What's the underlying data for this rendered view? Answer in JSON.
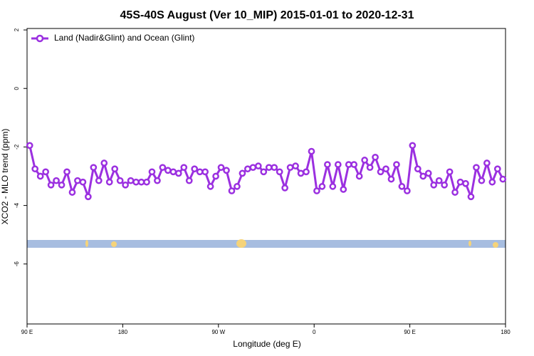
{
  "chart_data": {
    "type": "line",
    "title": "45S-40S August (Ver 10_MIP)   2015-01-01 to 2020-12-31",
    "xlabel": "Longitude (deg E)",
    "ylabel": "XCO2 - MLO trend (ppm)",
    "xlim": [
      90,
      540
    ],
    "xticks": [
      {
        "value": 90,
        "label": "90 E"
      },
      {
        "value": 180,
        "label": "180"
      },
      {
        "value": 270,
        "label": "90 W"
      },
      {
        "value": 360,
        "label": "0"
      },
      {
        "value": 450,
        "label": "90 E"
      },
      {
        "value": 540,
        "label": "180"
      }
    ],
    "ylim": [
      -8.05,
      2.05
    ],
    "yticks": [
      -6,
      -4,
      -2,
      0,
      2
    ],
    "legend": "top-left",
    "x": [
      92.5,
      97.5,
      102.5,
      107.5,
      112.5,
      117.5,
      122.5,
      127.5,
      132.5,
      137.5,
      142.5,
      147.5,
      152.5,
      157.5,
      162.5,
      167.5,
      172.5,
      177.5,
      182.5,
      187.5,
      192.5,
      197.5,
      202.5,
      207.5,
      212.5,
      217.5,
      222.5,
      227.5,
      232.5,
      237.5,
      242.5,
      247.5,
      252.5,
      257.5,
      262.5,
      267.5,
      272.5,
      277.5,
      282.5,
      287.5,
      292.5,
      297.5,
      302.5,
      307.5,
      312.5,
      317.5,
      322.5,
      327.5,
      332.5,
      337.5,
      342.5,
      347.5,
      352.5,
      357.5,
      362.5,
      367.5,
      372.5,
      377.5,
      382.5,
      387.5,
      392.5,
      397.5,
      402.5,
      407.5,
      412.5,
      417.5,
      422.5,
      427.5,
      432.5,
      437.5,
      442.5,
      447.5,
      452.5,
      457.5,
      462.5,
      467.5,
      472.5,
      477.5,
      482.5,
      487.5,
      492.5,
      497.5,
      502.5,
      507.5,
      512.5,
      517.5,
      522.5,
      527.5,
      532.5,
      537.5
    ],
    "series": [
      {
        "name": "Land (Nadir&Glint) and Ocean (Glint)",
        "color": "#9b30e0",
        "values": [
          -1.95,
          -2.75,
          -3.0,
          -2.85,
          -3.3,
          -3.15,
          -3.3,
          -2.85,
          -3.55,
          -3.15,
          -3.2,
          -3.7,
          -2.7,
          -3.15,
          -2.55,
          -3.2,
          -2.75,
          -3.15,
          -3.3,
          -3.15,
          -3.2,
          -3.2,
          -3.2,
          -2.85,
          -3.15,
          -2.7,
          -2.8,
          -2.85,
          -2.9,
          -2.7,
          -3.15,
          -2.75,
          -2.85,
          -2.85,
          -3.35,
          -3.0,
          -2.7,
          -2.8,
          -3.5,
          -3.35,
          -2.9,
          -2.75,
          -2.7,
          -2.65,
          -2.85,
          -2.7,
          -2.7,
          -2.85,
          -3.4,
          -2.7,
          -2.65,
          -2.9,
          -2.85,
          -2.15,
          -3.5,
          -3.35,
          -2.6,
          -3.35,
          -2.6,
          -3.45,
          -2.6,
          -2.6,
          -3.0,
          -2.45,
          -2.7,
          -2.35,
          -2.85,
          -2.75,
          -3.1,
          -2.6,
          -3.35,
          -3.5,
          -1.95,
          -2.75,
          -3.0,
          -2.9,
          -3.3,
          -3.15,
          -3.3,
          -2.85,
          -3.55,
          -3.2,
          -3.25,
          -3.7,
          -2.7,
          -3.15,
          -2.55,
          -3.2,
          -2.75,
          -3.1
        ]
      }
    ]
  }
}
